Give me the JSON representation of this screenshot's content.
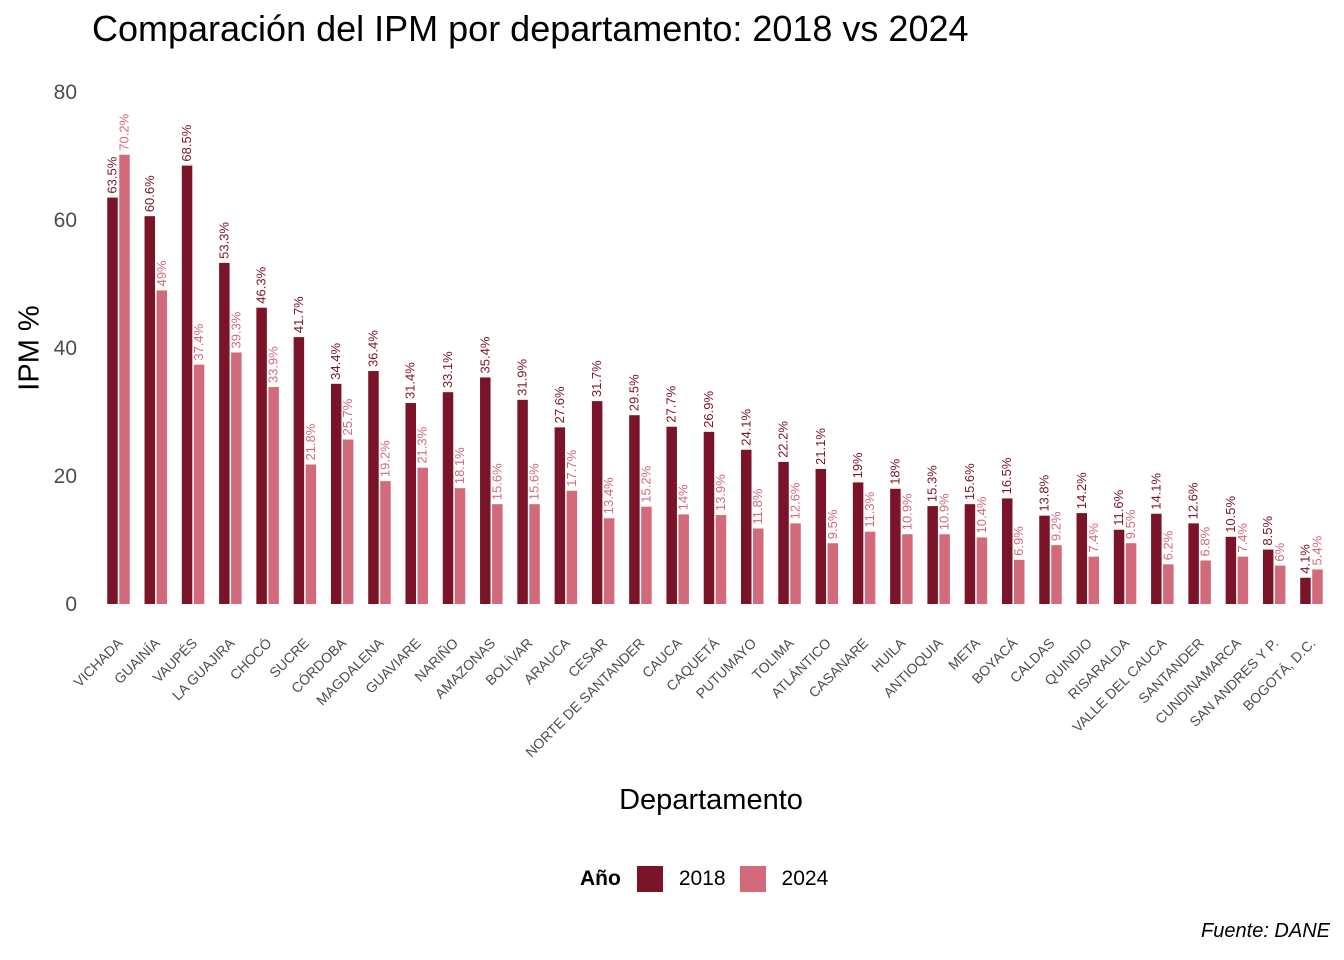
{
  "chart_data": {
    "type": "bar",
    "title": "Comparación del IPM por departamento: 2018 vs 2024",
    "xlabel": "Departamento",
    "ylabel": "IPM %",
    "ylim": [
      0,
      80
    ],
    "yticks": [
      0,
      20,
      40,
      60,
      80
    ],
    "grid": false,
    "legend_position": "bottom",
    "legend_title": "Año",
    "caption": "Fuente: DANE",
    "categories": [
      "VICHADA",
      "GUAINÍA",
      "VAUPÉS",
      "LA GUAJIRA",
      "CHOCÓ",
      "SUCRE",
      "CÓRDOBA",
      "MAGDALENA",
      "GUAVIARE",
      "NARIÑO",
      "AMAZONAS",
      "BOLÍVAR",
      "ARAUCA",
      "CESAR",
      "NORTE DE SANTANDER",
      "CAUCA",
      "CAQUETÁ",
      "PUTUMAYO",
      "TOLIMA",
      "ATLÁNTICO",
      "CASANARE",
      "HUILA",
      "ANTIOQUIA",
      "META",
      "BOYACÁ",
      "CALDAS",
      "QUINDIO",
      "RISARALDA",
      "VALLE DEL CAUCA",
      "SANTANDER",
      "CUNDINAMARCA",
      "SAN ANDRES Y P.",
      "BOGOTÁ, D.C."
    ],
    "series": [
      {
        "name": "2018",
        "color": "#7B1428",
        "values": [
          63.5,
          60.6,
          68.5,
          53.3,
          46.3,
          41.7,
          34.4,
          36.4,
          31.4,
          33.1,
          35.4,
          31.9,
          27.6,
          31.7,
          29.5,
          27.7,
          26.9,
          24.1,
          22.2,
          21.1,
          19,
          18,
          15.3,
          15.6,
          16.5,
          13.8,
          14.2,
          11.6,
          14.1,
          12.6,
          10.5,
          8.5,
          4.1
        ],
        "labels": [
          "63.5%",
          "60.6%",
          "68.5%",
          "53.3%",
          "46.3%",
          "41.7%",
          "34.4%",
          "36.4%",
          "31.4%",
          "33.1%",
          "35.4%",
          "31.9%",
          "27.6%",
          "31.7%",
          "29.5%",
          "27.7%",
          "26.9%",
          "24.1%",
          "22.2%",
          "21.1%",
          "19%",
          "18%",
          "15.3%",
          "15.6%",
          "16.5%",
          "13.8%",
          "14.2%",
          "11.6%",
          "14.1%",
          "12.6%",
          "10.5%",
          "8.5%",
          "4.1%"
        ]
      },
      {
        "name": "2024",
        "color": "#D26A7C",
        "values": [
          70.2,
          49,
          37.4,
          39.3,
          33.9,
          21.8,
          25.7,
          19.2,
          21.3,
          18.1,
          15.6,
          15.6,
          17.7,
          13.4,
          15.2,
          14,
          13.9,
          11.8,
          12.6,
          9.5,
          11.3,
          10.9,
          10.9,
          10.4,
          6.9,
          9.2,
          7.4,
          9.5,
          6.2,
          6.8,
          7.4,
          6,
          5.4
        ],
        "labels": [
          "70.2%",
          "49%",
          "37.4%",
          "39.3%",
          "33.9%",
          "21.8%",
          "25.7%",
          "19.2%",
          "21.3%",
          "18.1%",
          "15.6%",
          "15.6%",
          "17.7%",
          "13.4%",
          "15.2%",
          "14%",
          "13.9%",
          "11.8%",
          "12.6%",
          "9.5%",
          "11.3%",
          "10.9%",
          "10.9%",
          "10.4%",
          "6.9%",
          "9.2%",
          "7.4%",
          "9.5%",
          "6.2%",
          "6.8%",
          "7.4%",
          "6%",
          "5.4%"
        ]
      }
    ]
  }
}
